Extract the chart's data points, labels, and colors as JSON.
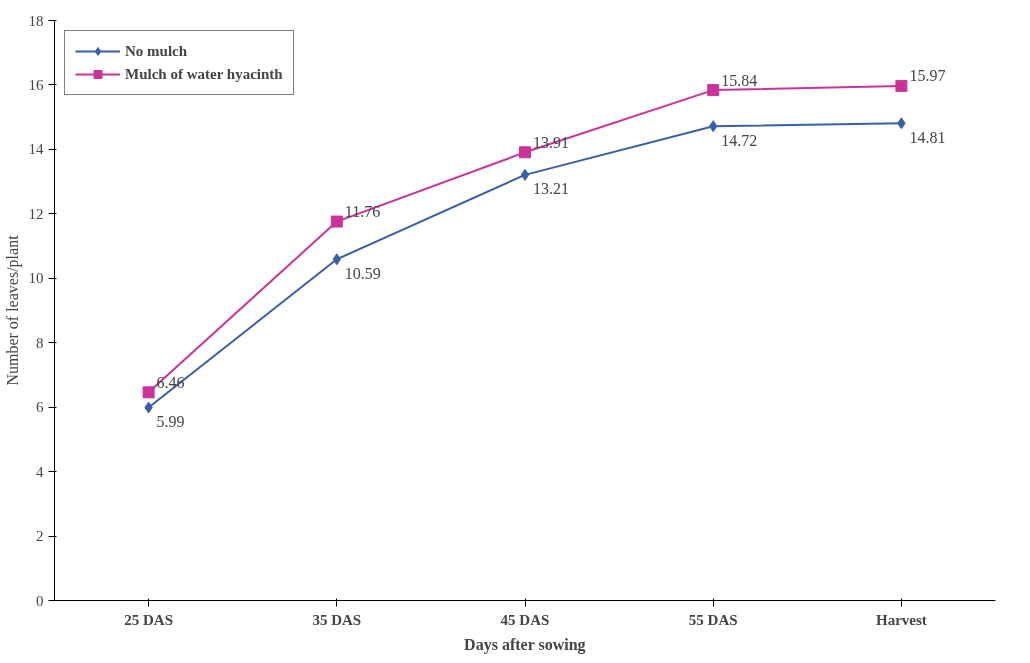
{
  "chart_data": {
    "type": "line",
    "xlabel": "Days after sowing",
    "ylabel": "Number of leaves/plant",
    "categories": [
      "25 DAS",
      "35 DAS",
      "45 DAS",
      "55 DAS",
      "Harvest"
    ],
    "series": [
      {
        "name": "No mulch",
        "color": "#3a5fa8",
        "marker": "diamond",
        "values": [
          5.99,
          10.59,
          13.21,
          14.72,
          14.81
        ]
      },
      {
        "name": "Mulch of water hyacinth",
        "color": "#cc3399",
        "marker": "square",
        "values": [
          6.46,
          11.76,
          13.91,
          15.84,
          15.97
        ]
      }
    ],
    "ylim": [
      0,
      18
    ],
    "yticks": [
      0,
      2,
      4,
      6,
      8,
      10,
      12,
      14,
      16,
      18
    ],
    "data_labels": true,
    "grid": false,
    "legend": "top left",
    "line_style": "solid"
  }
}
